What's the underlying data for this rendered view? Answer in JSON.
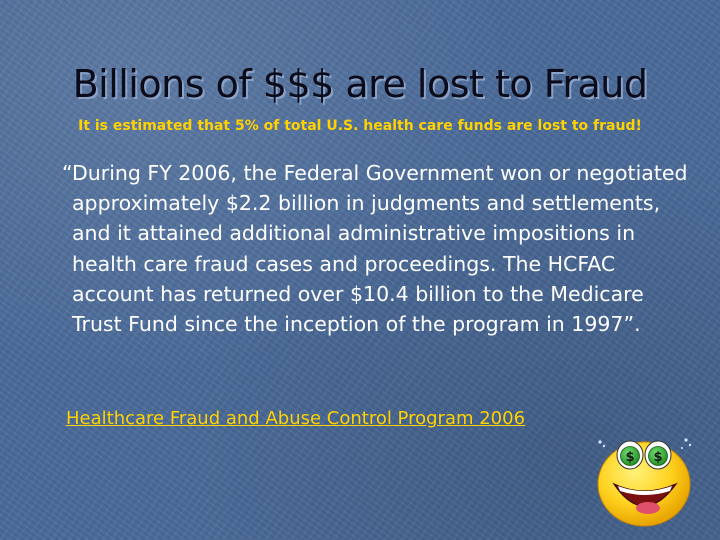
{
  "slide": {
    "title": "Billions of $$$ are lost to Fraud",
    "subtitle": "It is estimated that 5% of total U.S. health care funds are lost to fraud!",
    "quote": "“During FY 2006, the Federal Government won or negotiated approximately $2.2 billion in judgments and settlements, and it attained additional administrative impositions in health care fraud cases and proceedings. The HCFAC account has returned over $10.4 billion to the Medicare Trust Fund since the inception of the program in 1997”.",
    "source_link": "Healthcare Fraud and Abuse Control Program 2006",
    "icons": {
      "smiley": "money-eyes-smiley-icon"
    }
  },
  "colors": {
    "background": "#4a6a99",
    "title_text": "#0b0b1a",
    "subtitle_text": "#ffd200",
    "body_text": "#ffffff",
    "link_text": "#ffd200",
    "smiley_face": "#ffd21f"
  }
}
